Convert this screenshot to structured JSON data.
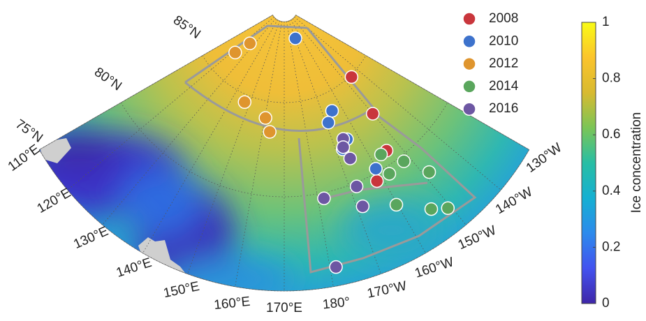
{
  "map": {
    "lat_labels": [
      {
        "value": 75,
        "label": "75°N"
      },
      {
        "value": 80,
        "label": "80°N"
      },
      {
        "value": 85,
        "label": "85°N"
      }
    ],
    "lon_labels": [
      {
        "value": 110,
        "label": "110°E"
      },
      {
        "value": 120,
        "label": "120°E"
      },
      {
        "value": 130,
        "label": "130°E"
      },
      {
        "value": 140,
        "label": "140°E"
      },
      {
        "value": 150,
        "label": "150°E"
      },
      {
        "value": 160,
        "label": "160°E"
      },
      {
        "value": 170,
        "label": "170°E"
      },
      {
        "value": 180,
        "label": "180°"
      },
      {
        "value": -170,
        "label": "170°W"
      },
      {
        "value": -160,
        "label": "160°W"
      },
      {
        "value": -150,
        "label": "150°W"
      },
      {
        "value": -140,
        "label": "140°W"
      },
      {
        "value": -130,
        "label": "130°W"
      }
    ],
    "series": [
      {
        "name": "2008",
        "color": "#c9363c",
        "points": [
          [
            -145.6,
            84.9
          ],
          [
            -150.0,
            82.7
          ],
          [
            -154.3,
            80.7
          ],
          [
            -161.8,
            79.6
          ]
        ]
      },
      {
        "name": "2010",
        "color": "#3d72cc",
        "points": [
          [
            -169.6,
            88.3
          ],
          [
            -165.0,
            84.0
          ],
          [
            -168.9,
            83.5
          ],
          [
            -164.4,
            82.3
          ],
          [
            -167.5,
            81.9
          ],
          [
            -160.3,
            80.2
          ]
        ]
      },
      {
        "name": "2012",
        "color": "#df952e",
        "points": [
          [
            122.0,
            86.5
          ],
          [
            125.6,
            87.4
          ],
          [
            147.1,
            84.6
          ],
          [
            160.3,
            84.1
          ],
          [
            163.3,
            83.4
          ]
        ]
      },
      {
        "name": "2014",
        "color": "#5aa65d",
        "points": [
          [
            -156.5,
            80.7
          ],
          [
            -152.0,
            79.7
          ],
          [
            -157.6,
            79.6
          ],
          [
            -148.5,
            78.4
          ],
          [
            -160.3,
            78.0
          ],
          [
            -153.8,
            76.8
          ],
          [
            -150.7,
            76.3
          ]
        ]
      },
      {
        "name": "2016",
        "color": "#6d57a3",
        "points": [
          [
            -165.7,
            82.4
          ],
          [
            -167.0,
            82.0
          ],
          [
            -166.3,
            81.3
          ],
          [
            -167.9,
            79.8
          ],
          [
            -178.2,
            79.7
          ],
          [
            -168.4,
            78.7
          ],
          [
            -178.7,
            76.0
          ]
        ]
      }
    ],
    "colorbar": {
      "label": "Ice concentration",
      "lim": [
        0,
        1
      ],
      "ticks": [
        0,
        0.2,
        0.4,
        0.6,
        0.8,
        1
      ]
    }
  }
}
